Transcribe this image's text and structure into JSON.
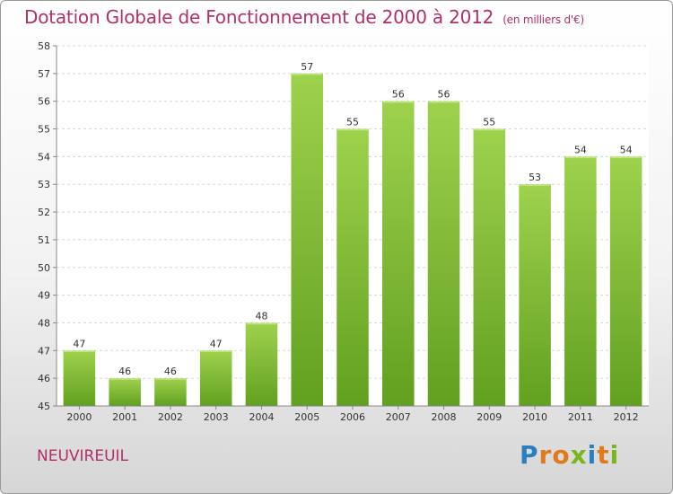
{
  "title": "Dotation Globale de Fonctionnement de 2000 à 2012",
  "subtitle": "(en milliers d'€)",
  "commune": "NEUVIREUIL",
  "logo": {
    "letters": [
      "P",
      "r",
      "o",
      "x",
      "i",
      "t",
      "i"
    ],
    "colors": [
      "#2a7fc0",
      "#e07a1c",
      "#e07a1c",
      "#7ab51d",
      "#2a7fc0",
      "#e07a1c",
      "#7ab51d"
    ]
  },
  "colors": {
    "title": "#b0306a",
    "bar_light": "#9ed24d",
    "bar_dark": "#62a020",
    "grid": "#d8d8d8",
    "axis": "#888888"
  },
  "chart_data": {
    "type": "bar",
    "categories": [
      "2000",
      "2001",
      "2002",
      "2003",
      "2004",
      "2005",
      "2006",
      "2007",
      "2008",
      "2009",
      "2010",
      "2011",
      "2012"
    ],
    "values": [
      47,
      46,
      46,
      47,
      48,
      57,
      55,
      56,
      56,
      55,
      53,
      54,
      54
    ],
    "ylim": [
      45,
      58
    ],
    "yticks": [
      45,
      46,
      47,
      48,
      49,
      50,
      51,
      52,
      53,
      54,
      55,
      56,
      57,
      58
    ],
    "grid": true,
    "data_labels": true
  }
}
